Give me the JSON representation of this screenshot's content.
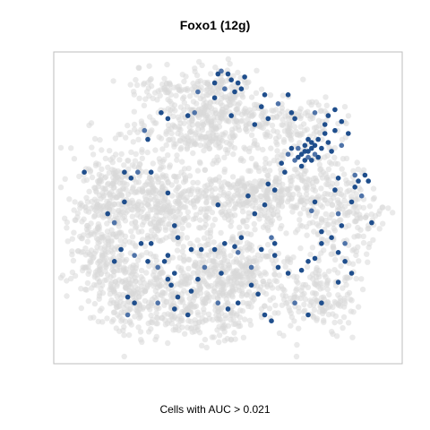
{
  "chart_data": {
    "type": "scatter",
    "title": "Foxo1 (12g)",
    "caption": "Cells with AUC > 0.021",
    "xlabel": "",
    "ylabel": "",
    "axes_visible": false,
    "grid": false,
    "legend": "none",
    "colors": {
      "background_cells": "#d9d9d9",
      "active_cells": "#1f4e8c",
      "active_cells_light": "#4f73a8",
      "frame": "#bdbdbd"
    },
    "series": [
      {
        "role": "background",
        "clusters": [
          {
            "cx": 0.12,
            "cy": 0.62,
            "sx": 0.05,
            "sy": 0.1,
            "n": 220
          },
          {
            "cx": 0.22,
            "cy": 0.78,
            "sx": 0.07,
            "sy": 0.07,
            "n": 240
          },
          {
            "cx": 0.38,
            "cy": 0.82,
            "sx": 0.07,
            "sy": 0.06,
            "n": 180
          },
          {
            "cx": 0.45,
            "cy": 0.7,
            "sx": 0.08,
            "sy": 0.06,
            "n": 200
          },
          {
            "cx": 0.55,
            "cy": 0.73,
            "sx": 0.06,
            "sy": 0.06,
            "n": 150
          },
          {
            "cx": 0.5,
            "cy": 0.88,
            "sx": 0.04,
            "sy": 0.04,
            "n": 60
          },
          {
            "cx": 0.18,
            "cy": 0.42,
            "sx": 0.07,
            "sy": 0.07,
            "n": 220
          },
          {
            "cx": 0.3,
            "cy": 0.5,
            "sx": 0.07,
            "sy": 0.07,
            "n": 240
          },
          {
            "cx": 0.5,
            "cy": 0.46,
            "sx": 0.08,
            "sy": 0.05,
            "n": 220
          },
          {
            "cx": 0.65,
            "cy": 0.45,
            "sx": 0.06,
            "sy": 0.07,
            "n": 160
          },
          {
            "cx": 0.78,
            "cy": 0.47,
            "sx": 0.06,
            "sy": 0.09,
            "n": 180
          },
          {
            "cx": 0.88,
            "cy": 0.55,
            "sx": 0.04,
            "sy": 0.08,
            "n": 90
          },
          {
            "cx": 0.38,
            "cy": 0.23,
            "sx": 0.08,
            "sy": 0.06,
            "n": 200
          },
          {
            "cx": 0.5,
            "cy": 0.2,
            "sx": 0.06,
            "sy": 0.06,
            "n": 150
          },
          {
            "cx": 0.68,
            "cy": 0.22,
            "sx": 0.07,
            "sy": 0.05,
            "n": 150
          },
          {
            "cx": 0.47,
            "cy": 0.08,
            "sx": 0.05,
            "sy": 0.03,
            "n": 70
          },
          {
            "cx": 0.3,
            "cy": 0.1,
            "sx": 0.05,
            "sy": 0.03,
            "n": 60
          },
          {
            "cx": 0.84,
            "cy": 0.8,
            "sx": 0.04,
            "sy": 0.05,
            "n": 60
          },
          {
            "cx": 0.73,
            "cy": 0.78,
            "sx": 0.06,
            "sy": 0.07,
            "n": 120
          }
        ]
      },
      {
        "role": "active",
        "points": [
          [
            0.48,
            0.04
          ],
          [
            0.5,
            0.05
          ],
          [
            0.51,
            0.07
          ],
          [
            0.46,
            0.08
          ],
          [
            0.53,
            0.08
          ],
          [
            0.49,
            0.1
          ],
          [
            0.52,
            0.11
          ],
          [
            0.55,
            0.06
          ],
          [
            0.47,
            0.05
          ],
          [
            0.54,
            0.1
          ],
          [
            0.41,
            0.11
          ],
          [
            0.46,
            0.13
          ],
          [
            0.3,
            0.18
          ],
          [
            0.32,
            0.2
          ],
          [
            0.38,
            0.19
          ],
          [
            0.4,
            0.18
          ],
          [
            0.51,
            0.19
          ],
          [
            0.61,
            0.12
          ],
          [
            0.6,
            0.16
          ],
          [
            0.68,
            0.12
          ],
          [
            0.65,
            0.15
          ],
          [
            0.69,
            0.18
          ],
          [
            0.7,
            0.2
          ],
          [
            0.62,
            0.2
          ],
          [
            0.58,
            0.22
          ],
          [
            0.76,
            0.18
          ],
          [
            0.8,
            0.19
          ],
          [
            0.82,
            0.17
          ],
          [
            0.84,
            0.21
          ],
          [
            0.79,
            0.22
          ],
          [
            0.25,
            0.24
          ],
          [
            0.26,
            0.27
          ],
          [
            0.07,
            0.38
          ],
          [
            0.19,
            0.38
          ],
          [
            0.21,
            0.4
          ],
          [
            0.23,
            0.38
          ],
          [
            0.27,
            0.38
          ],
          [
            0.32,
            0.45
          ],
          [
            0.19,
            0.48
          ],
          [
            0.14,
            0.52
          ],
          [
            0.16,
            0.55
          ],
          [
            0.34,
            0.56
          ],
          [
            0.35,
            0.6
          ],
          [
            0.62,
            0.42
          ],
          [
            0.64,
            0.44
          ],
          [
            0.71,
            0.3
          ],
          [
            0.72,
            0.32
          ],
          [
            0.73,
            0.29
          ],
          [
            0.74,
            0.31
          ],
          [
            0.75,
            0.3
          ],
          [
            0.76,
            0.32
          ],
          [
            0.75,
            0.28
          ],
          [
            0.77,
            0.33
          ],
          [
            0.73,
            0.34
          ],
          [
            0.71,
            0.33
          ],
          [
            0.7,
            0.34
          ],
          [
            0.74,
            0.27
          ],
          [
            0.76,
            0.29
          ],
          [
            0.78,
            0.3
          ],
          [
            0.73,
            0.31
          ],
          [
            0.74,
            0.33
          ],
          [
            0.72,
            0.36
          ],
          [
            0.75,
            0.34
          ],
          [
            0.77,
            0.27
          ],
          [
            0.69,
            0.3
          ],
          [
            0.68,
            0.32
          ],
          [
            0.79,
            0.25
          ],
          [
            0.8,
            0.28
          ],
          [
            0.81,
            0.31
          ],
          [
            0.82,
            0.24
          ],
          [
            0.84,
            0.29
          ],
          [
            0.86,
            0.25
          ],
          [
            0.66,
            0.35
          ],
          [
            0.67,
            0.38
          ],
          [
            0.83,
            0.4
          ],
          [
            0.88,
            0.39
          ],
          [
            0.89,
            0.41
          ],
          [
            0.91,
            0.39
          ],
          [
            0.92,
            0.41
          ],
          [
            0.88,
            0.43
          ],
          [
            0.9,
            0.46
          ],
          [
            0.87,
            0.48
          ],
          [
            0.93,
            0.55
          ],
          [
            0.82,
            0.44
          ],
          [
            0.76,
            0.48
          ],
          [
            0.75,
            0.51
          ],
          [
            0.61,
            0.49
          ],
          [
            0.58,
            0.52
          ],
          [
            0.56,
            0.46
          ],
          [
            0.47,
            0.49
          ],
          [
            0.83,
            0.52
          ],
          [
            0.84,
            0.56
          ],
          [
            0.78,
            0.58
          ],
          [
            0.81,
            0.6
          ],
          [
            0.78,
            0.62
          ],
          [
            0.85,
            0.62
          ],
          [
            0.83,
            0.65
          ],
          [
            0.85,
            0.68
          ],
          [
            0.87,
            0.72
          ],
          [
            0.83,
            0.75
          ],
          [
            0.63,
            0.6
          ],
          [
            0.64,
            0.62
          ],
          [
            0.6,
            0.64
          ],
          [
            0.64,
            0.66
          ],
          [
            0.65,
            0.7
          ],
          [
            0.57,
            0.7
          ],
          [
            0.68,
            0.72
          ],
          [
            0.72,
            0.71
          ],
          [
            0.74,
            0.68
          ],
          [
            0.76,
            0.67
          ],
          [
            0.7,
            0.82
          ],
          [
            0.74,
            0.86
          ],
          [
            0.78,
            0.82
          ],
          [
            0.54,
            0.6
          ],
          [
            0.52,
            0.63
          ],
          [
            0.53,
            0.65
          ],
          [
            0.49,
            0.62
          ],
          [
            0.46,
            0.64
          ],
          [
            0.42,
            0.64
          ],
          [
            0.39,
            0.64
          ],
          [
            0.43,
            0.7
          ],
          [
            0.41,
            0.74
          ],
          [
            0.48,
            0.72
          ],
          [
            0.39,
            0.78
          ],
          [
            0.31,
            0.68
          ],
          [
            0.29,
            0.7
          ],
          [
            0.32,
            0.74
          ],
          [
            0.34,
            0.72
          ],
          [
            0.27,
            0.62
          ],
          [
            0.24,
            0.62
          ],
          [
            0.22,
            0.66
          ],
          [
            0.26,
            0.68
          ],
          [
            0.18,
            0.64
          ],
          [
            0.2,
            0.8
          ],
          [
            0.22,
            0.82
          ],
          [
            0.2,
            0.86
          ],
          [
            0.33,
            0.76
          ],
          [
            0.35,
            0.8
          ],
          [
            0.38,
            0.86
          ],
          [
            0.34,
            0.84
          ],
          [
            0.29,
            0.82
          ],
          [
            0.57,
            0.76
          ],
          [
            0.59,
            0.79
          ],
          [
            0.53,
            0.82
          ],
          [
            0.5,
            0.84
          ],
          [
            0.47,
            0.82
          ],
          [
            0.61,
            0.86
          ],
          [
            0.63,
            0.88
          ],
          [
            0.16,
            0.68
          ],
          [
            0.32,
            0.66
          ]
        ]
      }
    ]
  }
}
